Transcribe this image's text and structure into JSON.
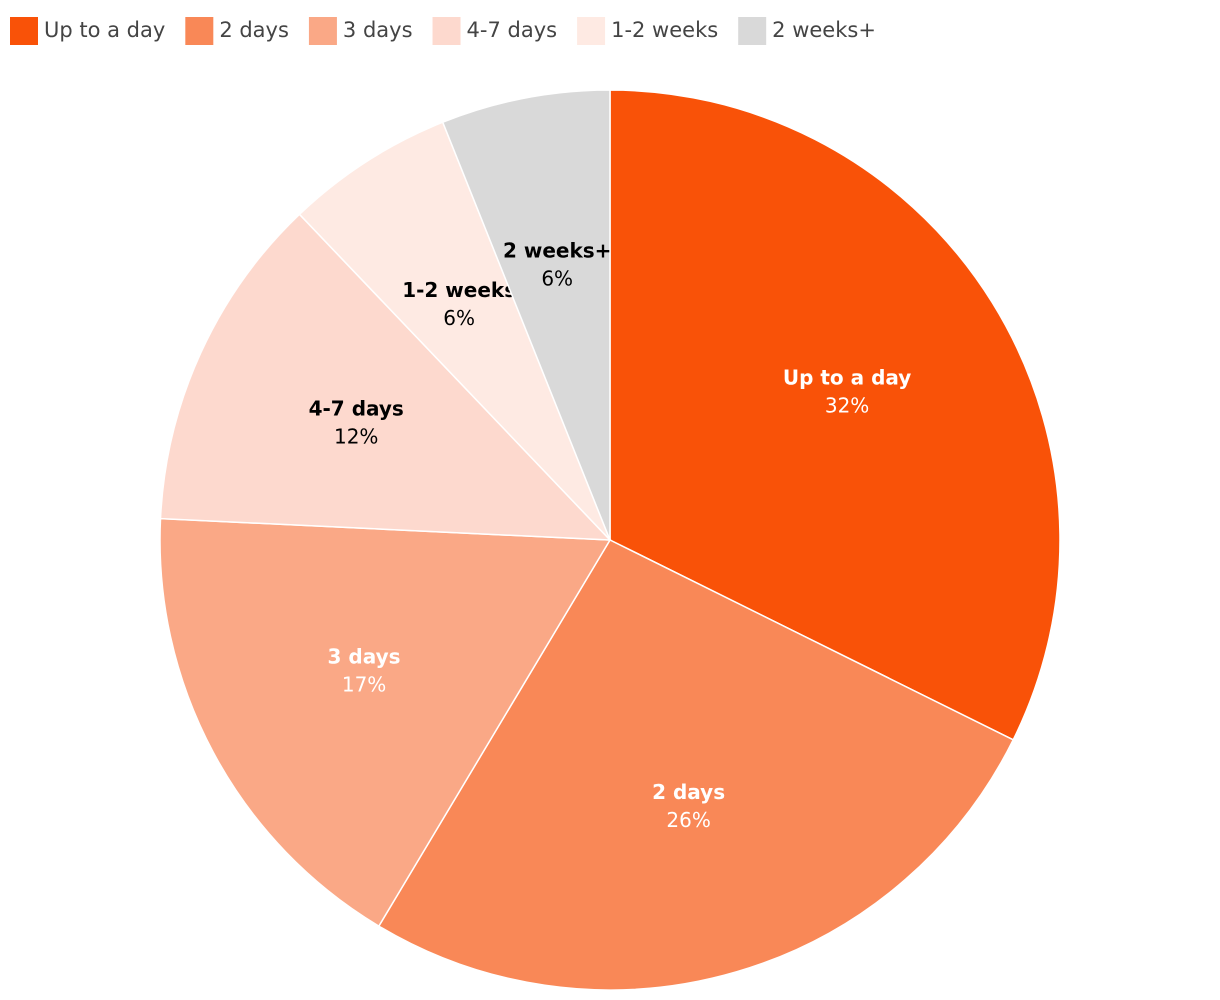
{
  "chart_data": {
    "type": "pie",
    "categories": [
      "Up to a day",
      "2 days",
      "3 days",
      "4-7 days",
      "1-2 weeks",
      "2 weeks+"
    ],
    "values": [
      32,
      26,
      17,
      12,
      6,
      6
    ],
    "value_labels": [
      "32%",
      "26%",
      "17%",
      "12%",
      "6%",
      "6%"
    ],
    "colors": [
      "#f95208",
      "#f98857",
      "#faa886",
      "#fdd9ce",
      "#feeae3",
      "#d9d9d9"
    ],
    "legend": "top-left"
  }
}
